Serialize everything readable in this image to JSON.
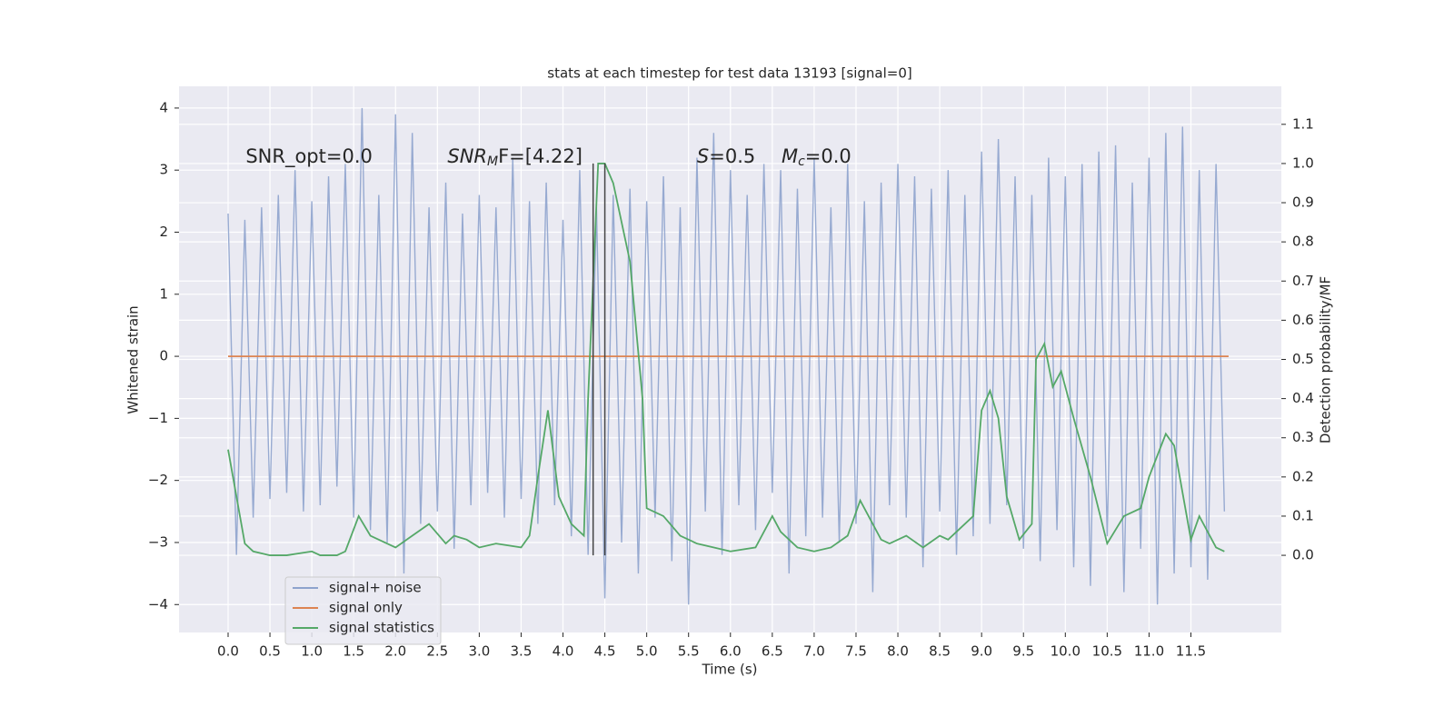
{
  "chart_data": {
    "type": "line",
    "title": "stats at each timestep for test data 13193 [signal=0]",
    "x_label": "Time (s)",
    "y_label": "Whitened strain",
    "y2_label": "Detection probability/MF",
    "xlim": [
      -0.586,
      12.58
    ],
    "ylim": [
      -4.45,
      4.35
    ],
    "y2lim": [
      -0.197,
      1.197
    ],
    "xticks": [
      {
        "value": 0,
        "label": "0.0"
      },
      0.5,
      {
        "value": 1,
        "label": "1.0"
      },
      1.5,
      {
        "value": 2,
        "label": "2.0"
      },
      2.5,
      {
        "value": 3,
        "label": "3.0"
      },
      3.5,
      {
        "value": 4,
        "label": "4.0"
      },
      4.5,
      {
        "value": 5,
        "label": "5.0"
      },
      5.5,
      {
        "value": 6,
        "label": "6.0"
      },
      6.5,
      {
        "value": 7,
        "label": "7.0"
      },
      7.5,
      {
        "value": 8,
        "label": "8.0"
      },
      8.5,
      {
        "value": 9,
        "label": "9.0"
      },
      9.5,
      {
        "value": 10,
        "label": "10.0"
      },
      10.5,
      {
        "value": 11,
        "label": "11.0"
      },
      11.5
    ],
    "yticks": [
      {
        "value": -4,
        "label": "−4"
      },
      {
        "value": -3,
        "label": "−3"
      },
      {
        "value": -2,
        "label": "−2"
      },
      {
        "value": -1,
        "label": "−1"
      },
      0,
      1,
      2,
      3,
      4
    ],
    "y2ticks": [
      {
        "value": 0,
        "label": "0.0"
      },
      0.1,
      0.2,
      0.3,
      0.4,
      0.5,
      0.6,
      0.7,
      0.8,
      0.9,
      {
        "value": 1,
        "label": "1.0"
      },
      1.1
    ],
    "grid": true,
    "legend": "lower left",
    "series": [
      {
        "name": "signal+ noise",
        "color": "#8ea3cd",
        "x": [
          0.0,
          0.1,
          0.2,
          0.3,
          0.4,
          0.5,
          0.6,
          0.7,
          0.8,
          0.9,
          1.0,
          1.1,
          1.2,
          1.3,
          1.4,
          1.5,
          1.6,
          1.7,
          1.8,
          1.9,
          2.0,
          2.1,
          2.2,
          2.3,
          2.4,
          2.5,
          2.6,
          2.7,
          2.8,
          2.9,
          3.0,
          3.1,
          3.2,
          3.3,
          3.4,
          3.5,
          3.6,
          3.7,
          3.8,
          3.9,
          4.0,
          4.1,
          4.2,
          4.3,
          4.4,
          4.5,
          4.6,
          4.7,
          4.8,
          4.9,
          5.0,
          5.1,
          5.2,
          5.3,
          5.4,
          5.5,
          5.6,
          5.7,
          5.8,
          5.9,
          6.0,
          6.1,
          6.2,
          6.3,
          6.4,
          6.5,
          6.6,
          6.7,
          6.8,
          6.9,
          7.0,
          7.1,
          7.2,
          7.3,
          7.4,
          7.5,
          7.6,
          7.7,
          7.8,
          7.9,
          8.0,
          8.1,
          8.2,
          8.3,
          8.4,
          8.5,
          8.6,
          8.7,
          8.8,
          8.9,
          9.0,
          9.1,
          9.2,
          9.3,
          9.4,
          9.5,
          9.6,
          9.7,
          9.8,
          9.9,
          10.0,
          10.1,
          10.2,
          10.3,
          10.4,
          10.5,
          10.6,
          10.7,
          10.8,
          10.9,
          11.0,
          11.1,
          11.2,
          11.3,
          11.4,
          11.5,
          11.6,
          11.7,
          11.8,
          11.9
        ],
        "values": [
          2.3,
          -3.2,
          2.2,
          -2.6,
          2.4,
          -2.3,
          2.6,
          -2.2,
          3.0,
          -2.5,
          2.5,
          -2.4,
          2.9,
          -2.1,
          3.1,
          -2.6,
          4.0,
          -2.8,
          2.6,
          -3.0,
          3.9,
          -3.5,
          3.6,
          -2.7,
          2.4,
          -2.5,
          2.8,
          -3.1,
          2.3,
          -2.4,
          2.6,
          -2.2,
          2.4,
          -2.6,
          3.2,
          -2.3,
          2.5,
          -2.7,
          2.8,
          -2.4,
          2.2,
          -2.9,
          3.0,
          -3.2,
          2.4,
          -3.9,
          2.6,
          -3.0,
          2.7,
          -3.5,
          2.5,
          -2.6,
          2.9,
          -3.3,
          2.4,
          -4.0,
          3.2,
          -2.5,
          3.6,
          -3.2,
          3.0,
          -2.4,
          2.6,
          -2.8,
          3.1,
          -2.2,
          3.0,
          -3.5,
          2.7,
          -2.9,
          3.2,
          -2.6,
          2.4,
          -3.0,
          3.1,
          -2.7,
          2.5,
          -3.8,
          2.8,
          -2.4,
          3.1,
          -2.6,
          2.9,
          -3.4,
          2.7,
          -2.5,
          3.0,
          -3.2,
          2.6,
          -2.9,
          3.3,
          -2.7,
          3.5,
          -2.4,
          2.9,
          -3.1,
          2.6,
          -3.3,
          3.2,
          -2.8,
          2.9,
          -3.4,
          3.1,
          -3.7,
          3.3,
          -2.9,
          3.4,
          -3.8,
          2.8,
          -3.1,
          3.2,
          -4.0,
          3.6,
          -3.5,
          3.7,
          -3.4,
          3.0,
          -3.6,
          3.1,
          -2.5
        ]
      },
      {
        "name": "signal only",
        "color": "#dd8452",
        "x": [
          0.0,
          11.95
        ],
        "values": [
          0,
          0
        ]
      },
      {
        "name": "signal statistics",
        "color": "#55a868",
        "axis": "y2",
        "x": [
          0,
          0.1,
          0.2,
          0.3,
          0.5,
          0.7,
          1.0,
          1.1,
          1.3,
          1.4,
          1.56,
          1.7,
          2.0,
          2.2,
          2.4,
          2.6,
          2.7,
          2.85,
          3.0,
          3.2,
          3.5,
          3.6,
          3.7,
          3.82,
          3.95,
          4.1,
          4.25,
          4.3,
          4.42,
          4.5,
          4.6,
          4.7,
          4.8,
          4.95,
          5.0,
          5.2,
          5.4,
          5.6,
          6.0,
          6.3,
          6.5,
          6.6,
          6.8,
          7.0,
          7.2,
          7.4,
          7.55,
          7.7,
          7.8,
          7.9,
          8.1,
          8.3,
          8.5,
          8.6,
          8.7,
          8.9,
          9.0,
          9.1,
          9.2,
          9.3,
          9.45,
          9.6,
          9.65,
          9.75,
          9.85,
          9.95,
          10.1,
          10.3,
          10.5,
          10.7,
          10.9,
          11.0,
          11.2,
          11.3,
          11.5,
          11.6,
          11.8,
          11.9
        ],
        "values": [
          0.27,
          0.15,
          0.03,
          0.01,
          0.0,
          0.0,
          0.01,
          0.0,
          0.0,
          0.01,
          0.1,
          0.05,
          0.02,
          0.05,
          0.08,
          0.03,
          0.05,
          0.04,
          0.02,
          0.03,
          0.02,
          0.05,
          0.2,
          0.37,
          0.15,
          0.08,
          0.05,
          0.4,
          1.0,
          1.0,
          0.95,
          0.85,
          0.75,
          0.4,
          0.12,
          0.1,
          0.05,
          0.03,
          0.01,
          0.02,
          0.1,
          0.06,
          0.02,
          0.01,
          0.02,
          0.05,
          0.14,
          0.08,
          0.04,
          0.03,
          0.05,
          0.02,
          0.05,
          0.04,
          0.06,
          0.1,
          0.37,
          0.42,
          0.35,
          0.15,
          0.04,
          0.08,
          0.5,
          0.54,
          0.43,
          0.47,
          0.35,
          0.2,
          0.03,
          0.1,
          0.12,
          0.2,
          0.31,
          0.28,
          0.04,
          0.1,
          0.02,
          0.01
        ]
      }
    ],
    "vlines": [
      {
        "x": 4.36,
        "y2": [
          0,
          1.0
        ],
        "color": "#444444"
      },
      {
        "x": 4.5,
        "y2": [
          0,
          1.0
        ],
        "color": "#444444"
      }
    ],
    "annotations": [
      {
        "x": 0.21,
        "y": 3.21,
        "text": "SNR_opt=0.0"
      },
      {
        "x": 2.62,
        "y": 3.21,
        "math": "SNR",
        "sub": "M",
        "text": "F=[4.22]"
      },
      {
        "x": 5.6,
        "y": 3.21,
        "math": "S",
        "text": "=0.5"
      },
      {
        "x": 6.61,
        "y": 3.21,
        "math": "M",
        "sub": "c",
        "text": "=0.0"
      }
    ]
  }
}
